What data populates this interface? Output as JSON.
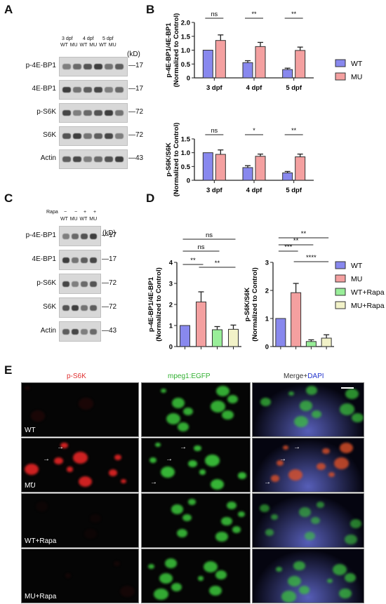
{
  "panels": {
    "A": "A",
    "B": "B",
    "C": "C",
    "D": "D",
    "E": "E"
  },
  "panelA": {
    "stage_labels": [
      "3 dpf",
      "4 dpf",
      "5 dpf"
    ],
    "lane_labels": "WT MU WT MU WT MU",
    "rows": [
      {
        "label": "p-4E-BP1",
        "kd": "17"
      },
      {
        "label": "4E-BP1",
        "kd": "17"
      },
      {
        "label": "p-S6K",
        "kd": "72"
      },
      {
        "label": "S6K",
        "kd": "72"
      },
      {
        "label": "Actin",
        "kd": "43"
      }
    ],
    "kd_unit": "(kD)"
  },
  "panelC": {
    "rapa_label": "Rapa",
    "rapa_marks": [
      "−",
      "−",
      "+",
      "+"
    ],
    "lane_labels": "WT MU WT MU",
    "rows": [
      {
        "label": "p-4E-BP1",
        "kd": "17"
      },
      {
        "label": "4E-BP1",
        "kd": "17"
      },
      {
        "label": "p-S6K",
        "kd": "72"
      },
      {
        "label": "S6K",
        "kd": "72"
      },
      {
        "label": "Actin",
        "kd": "43"
      }
    ],
    "kd_unit": "(kD)"
  },
  "panelB_legend": [
    {
      "name": "WT",
      "color": "#8888ee"
    },
    {
      "name": "MU",
      "color": "#f4a0a0"
    }
  ],
  "panelD_legend": [
    {
      "name": "WT",
      "color": "#8888ee"
    },
    {
      "name": "MU",
      "color": "#f4a0a0"
    },
    {
      "name": "WT+Rapa",
      "color": "#99ee99"
    },
    {
      "name": "MU+Rapa",
      "color": "#f2f2c8"
    }
  ],
  "chart_data": [
    {
      "id": "B-top",
      "type": "bar",
      "ylabel": "p-4E-BP1/4E-BP1\n(Normalized to Control)",
      "ylim": [
        0,
        2.0
      ],
      "yticks": [
        "0",
        "0.5",
        "1.0",
        "1.5",
        "2.0"
      ],
      "categories": [
        "3 dpf",
        "4 dpf",
        "5 dpf"
      ],
      "series": [
        {
          "name": "WT",
          "values": [
            1.0,
            0.55,
            0.3
          ],
          "errors": [
            0,
            0.07,
            0.05
          ]
        },
        {
          "name": "MU",
          "values": [
            1.35,
            1.13,
            0.99
          ],
          "errors": [
            0.2,
            0.15,
            0.12
          ]
        }
      ],
      "significance": [
        "ns",
        "**",
        "**"
      ]
    },
    {
      "id": "B-bottom",
      "type": "bar",
      "ylabel": "p-S6K/S6K\n(Normalized to Control)",
      "ylim": [
        0,
        1.5
      ],
      "yticks": [
        "0",
        "0.5",
        "1.0",
        "1.5"
      ],
      "categories": [
        "3 dpf",
        "4 dpf",
        "5 dpf"
      ],
      "series": [
        {
          "name": "WT",
          "values": [
            1.0,
            0.46,
            0.27
          ],
          "errors": [
            0,
            0.07,
            0.05
          ]
        },
        {
          "name": "MU",
          "values": [
            0.94,
            0.87,
            0.85
          ],
          "errors": [
            0.16,
            0.08,
            0.1
          ]
        }
      ],
      "significance": [
        "ns",
        "*",
        "**"
      ]
    },
    {
      "id": "D-left",
      "type": "bar",
      "ylabel": "p-4E-BP1/4E-BP1\n(Normalized to Control)",
      "ylim": [
        0,
        4
      ],
      "yticks": [
        "0",
        "1",
        "2",
        "3",
        "4"
      ],
      "categories": [
        "WT",
        "MU",
        "WT+Rapa",
        "MU+Rapa"
      ],
      "values": [
        1.0,
        2.12,
        0.8,
        0.82
      ],
      "errors": [
        0,
        0.48,
        0.15,
        0.2
      ],
      "comparisons": [
        {
          "from": 0,
          "to": 1,
          "label": "**"
        },
        {
          "from": 0,
          "to": 2,
          "label": "ns"
        },
        {
          "from": 1,
          "to": 3,
          "label": "**"
        },
        {
          "from": 0,
          "to": 3,
          "label": "ns"
        }
      ]
    },
    {
      "id": "D-right",
      "type": "bar",
      "ylabel": "p-S6K/S6K\n(Normalized to Control)",
      "ylim": [
        0,
        3
      ],
      "yticks": [
        "0",
        "1",
        "2",
        "3"
      ],
      "categories": [
        "WT",
        "MU",
        "WT+Rapa",
        "MU+Rapa"
      ],
      "values": [
        1.0,
        1.92,
        0.18,
        0.3
      ],
      "errors": [
        0,
        0.33,
        0.06,
        0.12
      ],
      "comparisons": [
        {
          "from": 0,
          "to": 1,
          "label": "***"
        },
        {
          "from": 0,
          "to": 2,
          "label": "**"
        },
        {
          "from": 1,
          "to": 3,
          "label": "****"
        },
        {
          "from": 0,
          "to": 3,
          "label": "**"
        }
      ]
    }
  ],
  "panelE": {
    "columns": [
      {
        "label": "p-S6K",
        "color": "#e03030"
      },
      {
        "label": "mpeg1:EGFP",
        "color": "#30b030"
      },
      {
        "label_a": "Merge+",
        "label_b": "DAPI",
        "color_a": "#333333",
        "color_b": "#2233cc"
      }
    ],
    "rows": [
      "WT",
      "MU",
      "WT+Rapa",
      "MU+Rapa"
    ]
  }
}
